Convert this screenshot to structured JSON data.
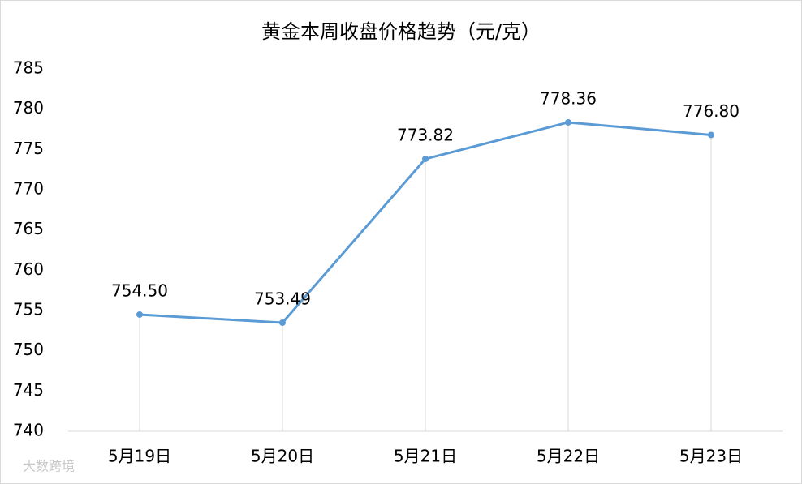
{
  "chart_data": {
    "type": "line",
    "title": "黄金本周收盘价格趋势（元/克）",
    "categories": [
      "5月19日",
      "5月20日",
      "5月21日",
      "5月22日",
      "5月23日"
    ],
    "series": [
      {
        "color": "#5b9bd5",
        "values": [
          754.5,
          753.49,
          773.82,
          778.36,
          776.8
        ],
        "value_labels": [
          "754.50",
          "753.49",
          "773.82",
          "778.36",
          "776.80"
        ]
      }
    ],
    "ylim": [
      740,
      785
    ],
    "yticks": [
      740,
      745,
      750,
      755,
      760,
      765,
      770,
      775,
      780,
      785
    ],
    "drop_lines": true,
    "watermark": "大数跨境"
  }
}
